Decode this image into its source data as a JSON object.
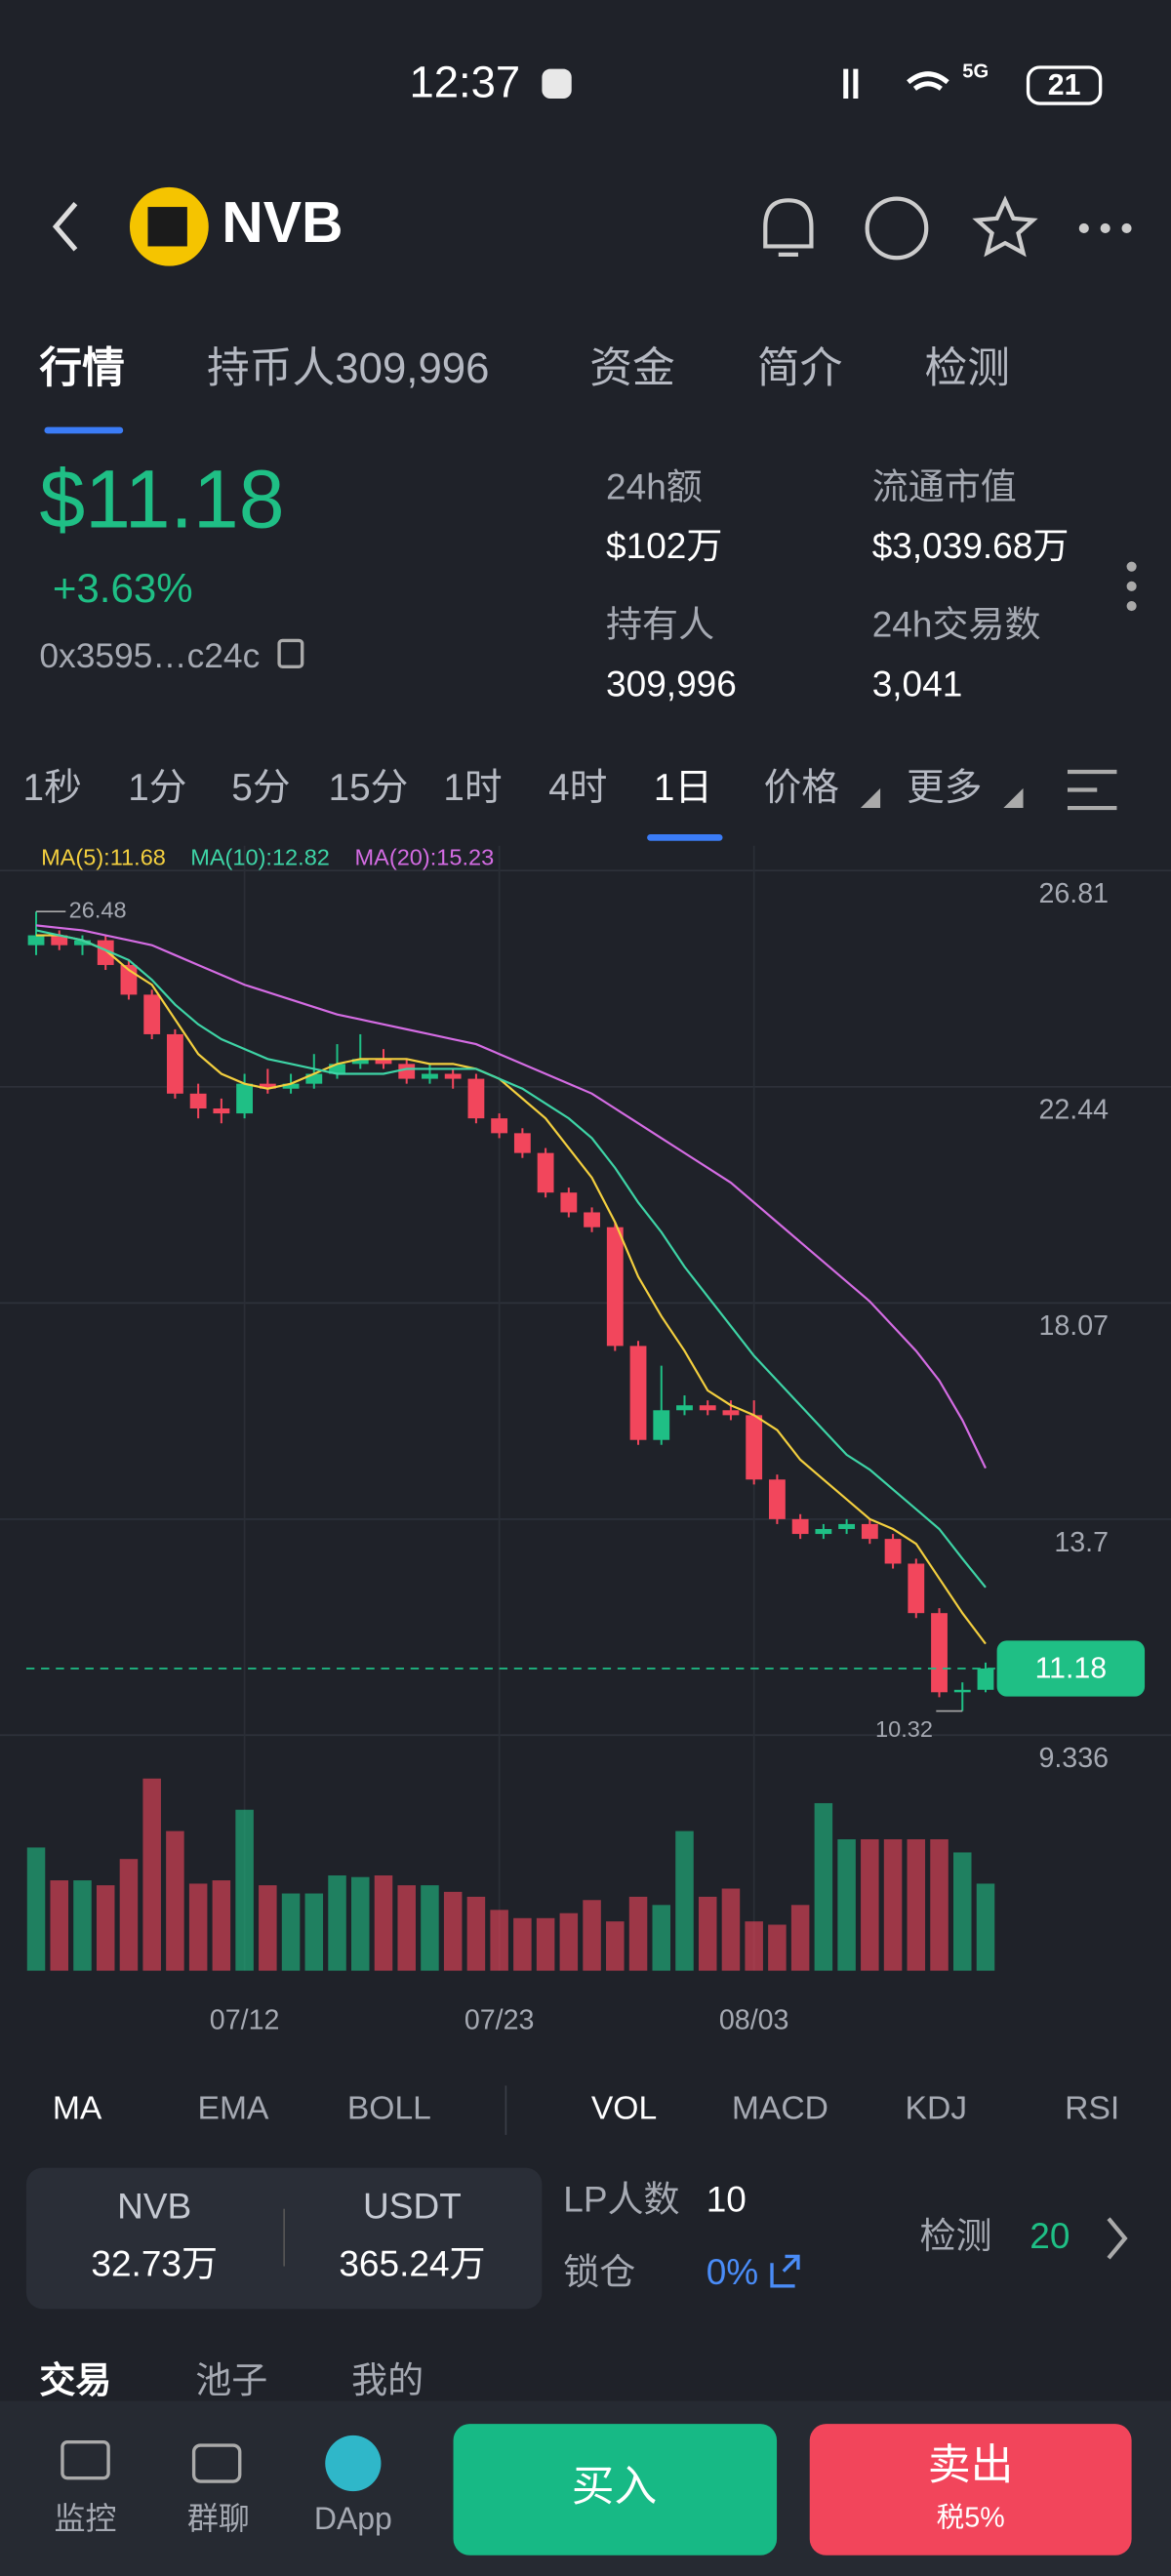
{
  "status_bar": {
    "time": "12:37",
    "network": "5G",
    "battery": "21"
  },
  "header": {
    "title": "NVB"
  },
  "tabs": [
    "行情",
    "持币人309,996",
    "资金",
    "简介",
    "检测"
  ],
  "price": {
    "value": "$11.18",
    "change": "+3.63%",
    "address": "0x3595…c24c"
  },
  "stats": [
    {
      "label": "24h额",
      "value": "$102万"
    },
    {
      "label": "流通市值",
      "value": "$3,039.68万"
    },
    {
      "label": "持有人",
      "value": "309,996"
    },
    {
      "label": "24h交易数",
      "value": "3,041"
    }
  ],
  "intervals": [
    "1秒",
    "1分",
    "5分",
    "15分",
    "1时",
    "4时",
    "1日",
    "价格",
    "更多"
  ],
  "chart_data": {
    "type": "candlestick",
    "x": [
      null,
      null,
      null,
      null,
      null,
      null,
      null,
      null,
      null,
      "07/12",
      null,
      null,
      null,
      null,
      null,
      null,
      null,
      null,
      null,
      null,
      "07/23",
      null,
      null,
      null,
      null,
      null,
      null,
      null,
      null,
      null,
      null,
      "08/03",
      null,
      null,
      null,
      null,
      null,
      null,
      null,
      null,
      null,
      null
    ],
    "open": [
      25.8,
      26.0,
      25.8,
      25.9,
      25.4,
      24.8,
      24.0,
      22.8,
      22.5,
      22.4,
      23.0,
      22.9,
      23.0,
      23.2,
      23.4,
      23.5,
      23.4,
      23.1,
      23.2,
      23.1,
      22.3,
      22.0,
      21.6,
      20.8,
      20.4,
      20.1,
      17.7,
      15.8,
      16.4,
      16.5,
      16.4,
      16.3,
      15.0,
      14.2,
      13.9,
      14.0,
      14.1,
      13.8,
      13.3,
      12.3,
      10.7,
      10.75
    ],
    "high": [
      26.48,
      26.1,
      26.0,
      26.0,
      25.5,
      24.9,
      24.1,
      23.0,
      22.7,
      23.2,
      23.3,
      23.2,
      23.6,
      23.8,
      24.0,
      23.7,
      23.5,
      23.4,
      23.3,
      23.2,
      22.4,
      22.1,
      21.7,
      20.9,
      20.5,
      20.2,
      17.8,
      17.3,
      16.7,
      16.6,
      16.6,
      16.6,
      15.1,
      14.3,
      14.1,
      14.2,
      14.2,
      13.9,
      13.4,
      12.4,
      10.9,
      11.3
    ],
    "low": [
      25.6,
      25.7,
      25.6,
      25.3,
      24.7,
      23.9,
      22.7,
      22.3,
      22.2,
      22.3,
      22.8,
      22.8,
      22.9,
      23.1,
      23.3,
      23.3,
      23.0,
      23.0,
      22.9,
      22.2,
      21.9,
      21.5,
      20.7,
      20.3,
      20.0,
      17.6,
      15.7,
      15.7,
      16.3,
      16.3,
      16.2,
      14.9,
      14.1,
      13.8,
      13.8,
      13.9,
      13.7,
      13.2,
      12.2,
      10.6,
      10.32,
      10.7
    ],
    "close": [
      26.0,
      25.8,
      25.9,
      25.4,
      24.8,
      24.0,
      22.8,
      22.5,
      22.4,
      23.0,
      22.9,
      23.0,
      23.2,
      23.4,
      23.5,
      23.4,
      23.1,
      23.2,
      23.1,
      22.3,
      22.0,
      21.6,
      20.8,
      20.4,
      20.1,
      17.7,
      15.8,
      16.4,
      16.5,
      16.4,
      16.3,
      15.0,
      14.2,
      13.9,
      14.0,
      14.1,
      13.8,
      13.3,
      12.3,
      10.7,
      10.75,
      11.18
    ],
    "volume": [
      75,
      55,
      55,
      52,
      68,
      117,
      85,
      53,
      55,
      98,
      52,
      47,
      47,
      58,
      57,
      58,
      52,
      52,
      48,
      45,
      37,
      32,
      32,
      35,
      43,
      30,
      45,
      40,
      85,
      45,
      50,
      30,
      28,
      40,
      102,
      80,
      80,
      80,
      80,
      80,
      72,
      53
    ],
    "ma": [
      {
        "name": "MA(5):11.68",
        "color": "#f3cf3f",
        "values": [
          26.0,
          26.0,
          25.9,
          25.7,
          25.3,
          25.0,
          24.3,
          23.6,
          23.2,
          23.0,
          22.9,
          23.0,
          23.2,
          23.4,
          23.5,
          23.5,
          23.5,
          23.4,
          23.4,
          23.3,
          23.1,
          22.7,
          22.3,
          21.7,
          21.1,
          20.2,
          19.1,
          18.3,
          17.6,
          16.8,
          16.5,
          16.3,
          16.0,
          15.4,
          15.0,
          14.6,
          14.2,
          14.0,
          13.7,
          13.0,
          12.3,
          11.68
        ]
      },
      {
        "name": "MA(10):12.82",
        "color": "#3ed4a6",
        "values": [
          26.1,
          26.0,
          25.9,
          25.7,
          25.5,
          25.1,
          24.6,
          24.2,
          23.9,
          23.7,
          23.5,
          23.4,
          23.3,
          23.2,
          23.2,
          23.2,
          23.3,
          23.3,
          23.3,
          23.3,
          23.1,
          22.9,
          22.6,
          22.3,
          21.9,
          21.3,
          20.6,
          20.0,
          19.3,
          18.7,
          18.1,
          17.5,
          17.0,
          16.5,
          16.0,
          15.5,
          15.2,
          14.8,
          14.4,
          14.0,
          13.4,
          12.82
        ]
      },
      {
        "name": "MA(20):15.23",
        "color": "#d46ce3",
        "values": [
          26.2,
          26.15,
          26.1,
          26.0,
          25.9,
          25.8,
          25.6,
          25.4,
          25.2,
          25.0,
          24.85,
          24.7,
          24.55,
          24.4,
          24.3,
          24.2,
          24.1,
          24.0,
          23.9,
          23.8,
          23.6,
          23.4,
          23.2,
          23.0,
          22.8,
          22.5,
          22.2,
          21.9,
          21.6,
          21.3,
          21.0,
          20.6,
          20.2,
          19.8,
          19.4,
          19.0,
          18.6,
          18.1,
          17.6,
          17.0,
          16.2,
          15.23
        ]
      }
    ],
    "ylim": [
      8.89,
      27.81
    ],
    "yticks": [
      26.81,
      22.44,
      18.07,
      13.7,
      9.336
    ],
    "last_price": 11.18,
    "up_color": "#1fbf85",
    "down_color": "#f2465c",
    "grid": true
  },
  "indicators": [
    "MA",
    "EMA",
    "BOLL",
    "VOL",
    "MACD",
    "KDJ",
    "RSI"
  ],
  "pool": {
    "token_a": "NVB",
    "amount_a": "32.73万",
    "token_b": "USDT",
    "amount_b": "365.24万",
    "lp_label": "LP人数",
    "lp_count": "10",
    "lock_label": "锁仓",
    "lock_value": "0%",
    "check_label": "检测",
    "check_value": "20"
  },
  "trade_tabs": [
    "交易",
    "池子",
    "我的"
  ],
  "bottom_nav": {
    "items": [
      "监控",
      "群聊",
      "DApp"
    ],
    "buy": "买入",
    "sell": "卖出",
    "tax": "税5%"
  }
}
